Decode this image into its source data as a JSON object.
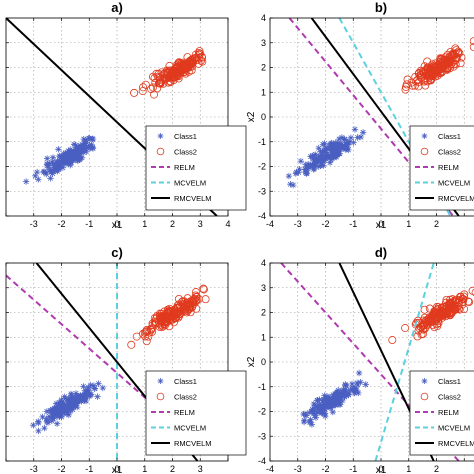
{
  "chart_data": [
    {
      "type": "scatter",
      "title": "a)",
      "xlabel": "x1",
      "ylabel": "",
      "xlim": [
        -4,
        4
      ],
      "ylim": [
        -4,
        4
      ],
      "xticks": [
        "",
        "-3",
        "-2",
        "-1",
        "0",
        "1",
        "2",
        "3",
        "4"
      ],
      "yticks": [
        "",
        "",
        "",
        "",
        "",
        "",
        "",
        "",
        ""
      ],
      "grid": true,
      "legend": "lower-right",
      "clusters": [
        {
          "series": "Class1",
          "center": [
            -1.7,
            -1.6
          ],
          "spread": [
            0.6,
            0.15
          ],
          "angle_deg": 36
        },
        {
          "series": "Class2",
          "center": [
            2.2,
            1.9
          ],
          "spread": [
            0.6,
            0.15
          ],
          "angle_deg": 36
        }
      ],
      "lines": [
        {
          "series": "RMCVELM",
          "from": [
            -4,
            4
          ],
          "to": [
            3.6,
            -4
          ]
        }
      ]
    },
    {
      "type": "scatter",
      "title": "b)",
      "xlabel": "x1",
      "ylabel": "x2",
      "xlim": [
        -4,
        4
      ],
      "ylim": [
        -4,
        4
      ],
      "xticks": [
        "-4",
        "-3",
        "-2",
        "-1",
        "0",
        "1",
        "2",
        "",
        ""
      ],
      "yticks": [
        "-4",
        "-3",
        "-2",
        "-1",
        "0",
        "1",
        "2",
        "3",
        "4"
      ],
      "grid": true,
      "legend": "lower-right",
      "clusters": [
        {
          "series": "Class1",
          "center": [
            -1.9,
            -1.5
          ],
          "spread": [
            0.6,
            0.15
          ],
          "angle_deg": 36
        },
        {
          "series": "Class2",
          "center": [
            2.1,
            2.0
          ],
          "spread": [
            0.6,
            0.15
          ],
          "angle_deg": 36
        }
      ],
      "lines": [
        {
          "series": "RELM",
          "from": [
            -3.3,
            4
          ],
          "to": [
            2.6,
            -4
          ]
        },
        {
          "series": "MCVELM",
          "from": [
            -1.5,
            4
          ],
          "to": [
            2.5,
            -4
          ]
        },
        {
          "series": "RMCVELM",
          "from": [
            -2.5,
            4
          ],
          "to": [
            2.8,
            -4
          ]
        }
      ]
    },
    {
      "type": "scatter",
      "title": "c)",
      "xlabel": "x1",
      "ylabel": "",
      "xlim": [
        -4,
        4
      ],
      "ylim": [
        -4,
        4
      ],
      "xticks": [
        "",
        "-3",
        "-2",
        "-1",
        "0",
        "1",
        "2",
        "3",
        ""
      ],
      "yticks": [
        "",
        "",
        "",
        "",
        "",
        "",
        "",
        "",
        ""
      ],
      "grid": true,
      "legend": "lower-right",
      "clusters": [
        {
          "series": "Class1",
          "center": [
            -1.7,
            -1.7
          ],
          "spread": [
            0.6,
            0.15
          ],
          "angle_deg": 36
        },
        {
          "series": "Class2",
          "center": [
            2.0,
            1.9
          ],
          "spread": [
            0.6,
            0.15
          ],
          "angle_deg": 36
        }
      ],
      "lines": [
        {
          "series": "RELM",
          "from": [
            -4,
            3.5
          ],
          "to": [
            3.1,
            -3.5
          ]
        },
        {
          "series": "MCVELM",
          "from": [
            0.0,
            4
          ],
          "to": [
            0.0,
            -4
          ]
        },
        {
          "series": "RMCVELM",
          "from": [
            -2.9,
            4
          ],
          "to": [
            2.9,
            -4
          ]
        }
      ]
    },
    {
      "type": "scatter",
      "title": "d)",
      "xlabel": "x1",
      "ylabel": "x2",
      "xlim": [
        -4,
        4
      ],
      "ylim": [
        -4,
        4
      ],
      "xticks": [
        "-4",
        "-3",
        "-2",
        "-1",
        "0",
        "1",
        "2",
        "",
        ""
      ],
      "yticks": [
        "-4",
        "-3",
        "-2",
        "-1",
        "0",
        "1",
        "2",
        "3",
        "4"
      ],
      "grid": true,
      "legend": "lower-right",
      "clusters": [
        {
          "series": "Class1",
          "center": [
            -1.8,
            -1.6
          ],
          "spread": [
            0.6,
            0.15
          ],
          "angle_deg": 36
        },
        {
          "series": "Class2",
          "center": [
            2.2,
            2.0
          ],
          "spread": [
            0.6,
            0.15
          ],
          "angle_deg": 36
        }
      ],
      "lines": [
        {
          "series": "RELM",
          "from": [
            -3.6,
            4
          ],
          "to": [
            2.8,
            -4
          ]
        },
        {
          "series": "MCVELM",
          "from": [
            -0.2,
            -4
          ],
          "to": [
            1.9,
            4
          ]
        },
        {
          "series": "RMCVELM",
          "from": [
            -1.5,
            4
          ],
          "to": [
            1.9,
            -4
          ]
        }
      ]
    }
  ],
  "legend": [
    {
      "name": "Class1",
      "marker": "star",
      "color": "#4a5fc1"
    },
    {
      "name": "Class2",
      "marker": "circle",
      "color": "#e03a1e"
    },
    {
      "name": "RELM",
      "dash": "dash",
      "color": "#b03ab0"
    },
    {
      "name": "MCVELM",
      "dash": "dash",
      "color": "#5bd1de"
    },
    {
      "name": "RMCVELM",
      "dash": "solid",
      "color": "#000000"
    }
  ]
}
